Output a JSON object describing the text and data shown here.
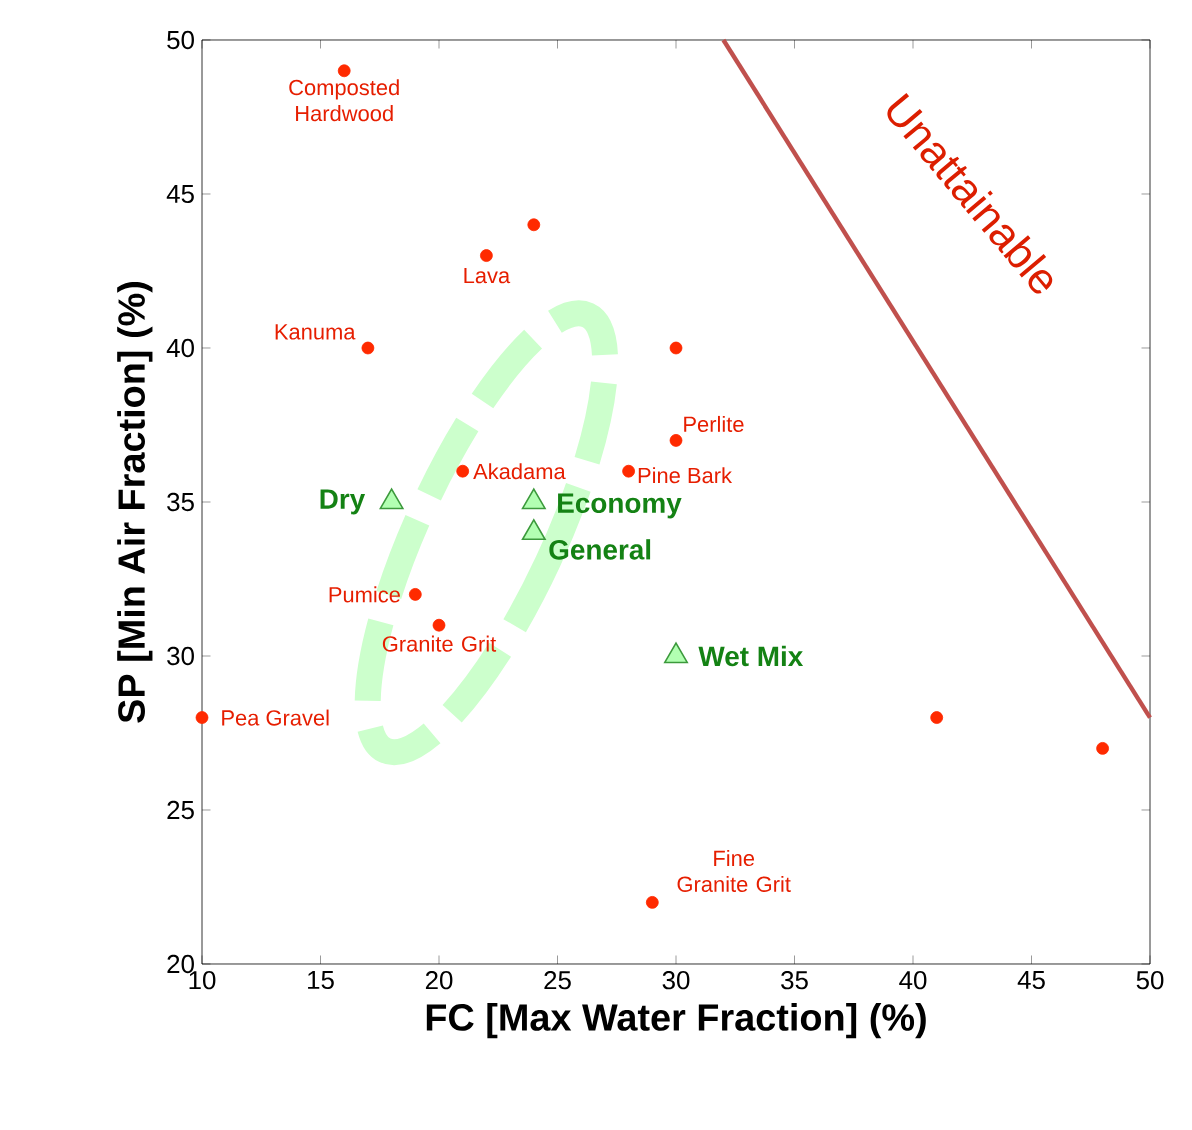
{
  "chart_data": {
    "type": "scatter",
    "xlabel": "FC [Max Water Fraction] (%)",
    "ylabel": "SP [Min Air Fraction] (%)",
    "xlim": [
      10,
      50
    ],
    "ylim": [
      20,
      50
    ],
    "xticks": [
      10,
      15,
      20,
      25,
      30,
      35,
      40,
      45,
      50
    ],
    "yticks": [
      20,
      25,
      30,
      35,
      40,
      45,
      50
    ],
    "grid": false,
    "series": [
      {
        "marker": "circle",
        "color": "#ff2a00",
        "x": [
          16,
          24,
          22,
          17,
          30,
          30,
          21,
          28,
          19,
          20,
          10,
          41,
          48,
          29
        ],
        "values": [
          49,
          44,
          43,
          40,
          40,
          37,
          36,
          36,
          32,
          31,
          28,
          28,
          27,
          22
        ]
      },
      {
        "marker": "triangle",
        "color": "#3c9a3c",
        "x": [
          18,
          24,
          24,
          30
        ],
        "values": [
          35,
          35,
          34,
          30
        ]
      },
      {
        "type": "line",
        "marker": "none",
        "color": "#c0504d",
        "x": [
          32,
          50
        ],
        "values": [
          50,
          28
        ]
      }
    ],
    "annotations": [
      {
        "text": "Composted Hardwood",
        "x": 16,
        "y": 49
      },
      {
        "text": "Lava",
        "x": 22,
        "y": 43
      },
      {
        "text": "Kanuma",
        "x": 17,
        "y": 40
      },
      {
        "text": "Perlite",
        "x": 30,
        "y": 37
      },
      {
        "text": "Akadama",
        "x": 21,
        "y": 36
      },
      {
        "text": "Pine Bark",
        "x": 28,
        "y": 36
      },
      {
        "text": "Pumice",
        "x": 19,
        "y": 32
      },
      {
        "text": "Granite Grit",
        "x": 20,
        "y": 31
      },
      {
        "text": "Pea Gravel",
        "x": 10,
        "y": 28
      },
      {
        "text": "Fine Granite Grit",
        "x": 29,
        "y": 22
      },
      {
        "text": "Dry",
        "x": 18,
        "y": 35
      },
      {
        "text": "Economy",
        "x": 24,
        "y": 35
      },
      {
        "text": "General",
        "x": 24,
        "y": 34
      },
      {
        "text": "Wet Mix",
        "x": 30,
        "y": 30
      },
      "Unattainable"
    ]
  }
}
